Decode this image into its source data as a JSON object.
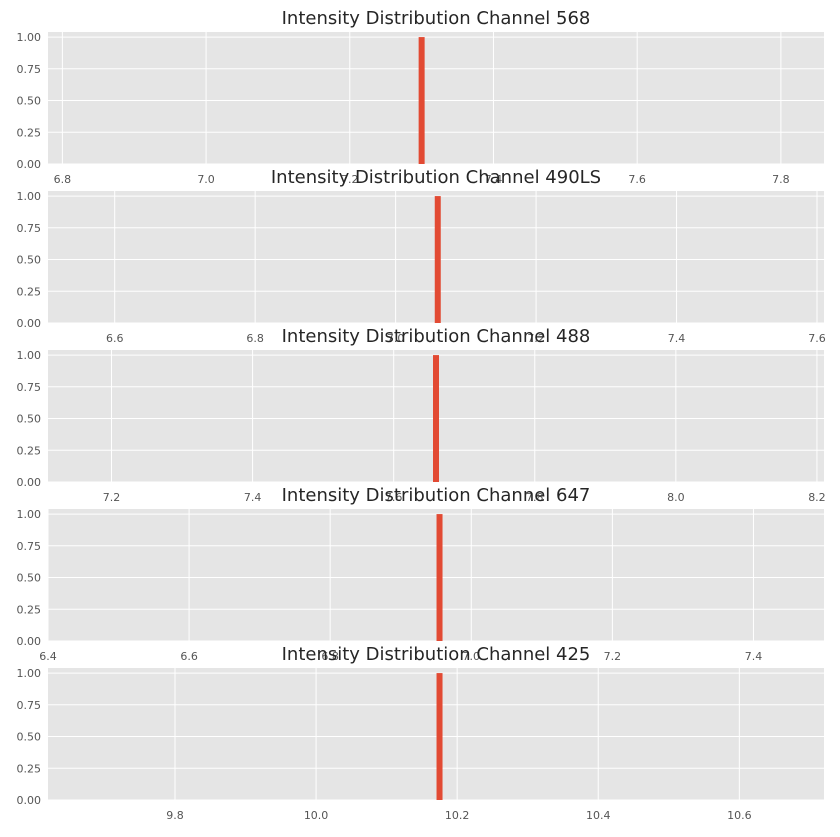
{
  "chart_data": [
    {
      "type": "bar",
      "title": "Intensity Distribution Channel 568",
      "xlim": [
        6.78,
        7.86
      ],
      "ylim": [
        0,
        1.04
      ],
      "xticks": [
        6.8,
        7.0,
        7.2,
        7.4,
        7.6,
        7.8
      ],
      "yticks": [
        0.0,
        0.25,
        0.5,
        0.75,
        1.0
      ],
      "bars": [
        {
          "x": 7.3,
          "height": 1.0
        }
      ],
      "bar_color": "#E24A33",
      "grid": true
    },
    {
      "type": "bar",
      "title": "Intensity Distribution Channel 490LS",
      "xlim": [
        6.505,
        7.61
      ],
      "ylim": [
        0,
        1.04
      ],
      "xticks": [
        6.6,
        6.8,
        7.0,
        7.2,
        7.4,
        7.6
      ],
      "yticks": [
        0.0,
        0.25,
        0.5,
        0.75,
        1.0
      ],
      "bars": [
        {
          "x": 7.06,
          "height": 1.0
        }
      ],
      "bar_color": "#E24A33",
      "grid": true
    },
    {
      "type": "bar",
      "title": "Intensity Distribution Channel 488",
      "xlim": [
        7.11,
        8.21
      ],
      "ylim": [
        0,
        1.04
      ],
      "xticks": [
        7.2,
        7.4,
        7.6,
        7.8,
        8.0,
        8.2
      ],
      "yticks": [
        0.0,
        0.25,
        0.5,
        0.75,
        1.0
      ],
      "bars": [
        {
          "x": 7.66,
          "height": 1.0
        }
      ],
      "bar_color": "#E24A33",
      "grid": true
    },
    {
      "type": "bar",
      "title": "Intensity Distribution Channel 647",
      "xlim": [
        6.4,
        7.5
      ],
      "ylim": [
        0,
        1.04
      ],
      "xticks": [
        6.4,
        6.6,
        6.8,
        7.0,
        7.2,
        7.4
      ],
      "yticks": [
        0.0,
        0.25,
        0.5,
        0.75,
        1.0
      ],
      "bars": [
        {
          "x": 6.955,
          "height": 1.0
        }
      ],
      "bar_color": "#E24A33",
      "grid": true
    },
    {
      "type": "bar",
      "title": "Intensity Distribution Channel 425",
      "xlim": [
        9.62,
        10.72
      ],
      "ylim": [
        0,
        1.04
      ],
      "xticks": [
        9.8,
        10.0,
        10.2,
        10.4,
        10.6
      ],
      "yticks": [
        0.0,
        0.25,
        0.5,
        0.75,
        1.0
      ],
      "bars": [
        {
          "x": 10.175,
          "height": 1.0
        }
      ],
      "bar_color": "#E24A33",
      "grid": true
    }
  ],
  "style": {
    "panel_background": "#E5E5E5",
    "grid_color": "#FFFFFF",
    "bar_color": "#E24A33",
    "tick_color": "#555555",
    "title_color": "#262626"
  }
}
